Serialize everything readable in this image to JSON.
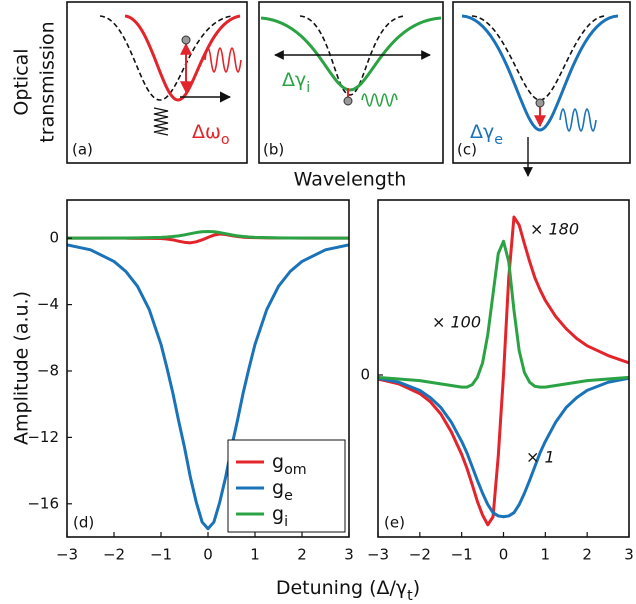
{
  "schematic": {
    "ylabel": [
      "Optical",
      "transmission"
    ],
    "xlabel": "Wavelength",
    "panels": [
      {
        "label": "(a)",
        "annotation": "Δωo"
      },
      {
        "label": "(b)",
        "annotation": "Δγi"
      },
      {
        "label": "(c)",
        "annotation": "Δγe"
      }
    ]
  },
  "chart_data": [
    {
      "type": "line",
      "panel_label": "(d)",
      "ylabel": "Amplitude (a.u.)",
      "xlabel": "Detuning (Δ/γt)",
      "x": [
        -3,
        -2.5,
        -2,
        -1.75,
        -1.5,
        -1.25,
        -1,
        -0.875,
        -0.75,
        -0.625,
        -0.5,
        -0.375,
        -0.25,
        -0.125,
        0,
        0.125,
        0.25,
        0.375,
        0.5,
        0.625,
        0.75,
        0.875,
        1,
        1.25,
        1.5,
        1.75,
        2,
        2.5,
        3
      ],
      "xlim": [
        -3,
        3
      ],
      "xticks": [
        {
          "value": -3,
          "label": "−3"
        },
        {
          "value": -2,
          "label": "−2"
        },
        {
          "value": -1,
          "label": "−1"
        },
        0,
        1,
        2,
        3
      ],
      "ylim": [
        -18,
        2.3
      ],
      "yticks": [
        0,
        {
          "value": -4,
          "label": "−4"
        },
        {
          "value": -8,
          "label": "−8"
        },
        {
          "value": -12,
          "label": "−12"
        },
        {
          "value": -16,
          "label": "−16"
        }
      ],
      "legend": "lower right",
      "series": [
        {
          "name": "gom",
          "color": "#e3242b",
          "values": [
            0,
            0,
            0,
            0,
            -0.01,
            -0.01,
            -0.02,
            -0.05,
            -0.1,
            -0.18,
            -0.25,
            -0.28,
            -0.22,
            -0.1,
            0.05,
            0.18,
            0.25,
            0.22,
            0.15,
            0.1,
            0.06,
            0.04,
            0.03,
            0.02,
            0.01,
            0.01,
            0,
            0,
            0
          ]
        },
        {
          "name": "ge",
          "color": "#1a73b9",
          "values": [
            -0.4,
            -0.7,
            -1.4,
            -2.0,
            -2.9,
            -4.3,
            -6.4,
            -7.8,
            -9.3,
            -11.0,
            -12.6,
            -14.4,
            -15.9,
            -17.1,
            -17.5,
            -17.1,
            -15.9,
            -14.4,
            -12.6,
            -11.0,
            -9.3,
            -7.8,
            -6.4,
            -4.3,
            -2.9,
            -2.0,
            -1.4,
            -0.7,
            -0.4
          ]
        },
        {
          "name": "gi",
          "color": "#2ba345",
          "values": [
            0,
            0,
            0.01,
            0.01,
            0.02,
            0.03,
            0.05,
            0.07,
            0.1,
            0.14,
            0.2,
            0.27,
            0.34,
            0.39,
            0.4,
            0.39,
            0.34,
            0.27,
            0.2,
            0.14,
            0.1,
            0.07,
            0.05,
            0.03,
            0.02,
            0.01,
            0.01,
            0,
            0
          ]
        }
      ]
    },
    {
      "type": "line",
      "panel_label": "(e)",
      "x": [
        -3,
        -2.5,
        -2,
        -1.75,
        -1.5,
        -1.25,
        -1,
        -0.875,
        -0.75,
        -0.625,
        -0.5,
        -0.375,
        -0.25,
        -0.125,
        0,
        0.125,
        0.25,
        0.375,
        0.5,
        0.625,
        0.75,
        0.875,
        1,
        1.25,
        1.5,
        1.75,
        2,
        2.5,
        3
      ],
      "xlim": [
        -3,
        3
      ],
      "xticks": [
        {
          "value": -3,
          "label": "−3"
        },
        {
          "value": -2,
          "label": "−2"
        },
        {
          "value": -1,
          "label": "−1"
        },
        0,
        1,
        2,
        3
      ],
      "ylim": [
        -20,
        21.6
      ],
      "yticks": [
        0
      ],
      "annotations": [
        "× 180",
        "× 100",
        "× 1"
      ],
      "series": [
        {
          "color": "#e3242b",
          "values": [
            -0.5,
            -1.1,
            -2.3,
            -3.3,
            -4.8,
            -7.0,
            -9.8,
            -11.5,
            -13.5,
            -15.6,
            -17.3,
            -18.5,
            -17.5,
            -10,
            0,
            12,
            19.5,
            18.5,
            16.2,
            14,
            12,
            10.5,
            9.2,
            7.2,
            5.7,
            4.5,
            3.6,
            2.4,
            1.5
          ]
        },
        {
          "color": "#1a73b9",
          "values": [
            -0.4,
            -0.9,
            -1.9,
            -2.8,
            -4.0,
            -5.8,
            -8.2,
            -9.6,
            -11.3,
            -13.0,
            -14.6,
            -16.0,
            -17.0,
            -17.4,
            -17.5,
            -17.4,
            -17.0,
            -16.0,
            -14.6,
            -13.0,
            -11.3,
            -9.6,
            -8.2,
            -5.8,
            -4.0,
            -2.8,
            -1.9,
            -0.9,
            -0.4
          ]
        },
        {
          "color": "#2ba345",
          "values": [
            -0.3,
            -0.5,
            -0.7,
            -0.9,
            -1.1,
            -1.3,
            -1.5,
            -1.5,
            -1.2,
            -0.3,
            1.5,
            5,
            10,
            15,
            16.5,
            14,
            8,
            3,
            0.3,
            -0.9,
            -1.4,
            -1.5,
            -1.5,
            -1.3,
            -1.1,
            -0.9,
            -0.7,
            -0.5,
            -0.3
          ]
        }
      ]
    }
  ]
}
